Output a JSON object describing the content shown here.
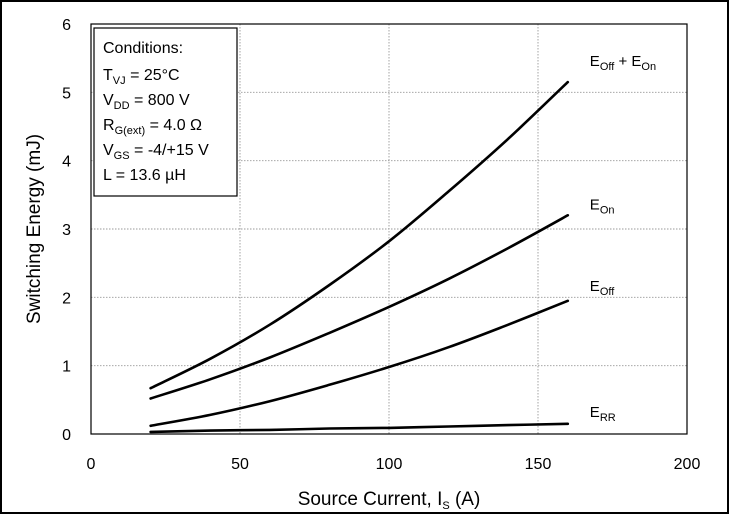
{
  "chart_data": {
    "type": "line",
    "xlabel": "Source Current, I",
    "xlabel_sub": "S",
    "xlabel_suffix": " (A)",
    "ylabel": "Switching Energy (mJ)",
    "xlim": [
      0,
      200
    ],
    "ylim": [
      0,
      6
    ],
    "xticks": [
      "0",
      "50",
      "100",
      "150",
      "200"
    ],
    "yticks": [
      "0",
      "1",
      "2",
      "3",
      "4",
      "5",
      "6"
    ],
    "grid": true,
    "series": [
      {
        "name": "E_Off + E_On",
        "label_main": "E",
        "label_sub": "Off",
        "label_mid": " + E",
        "label_sub2": "On",
        "x": [
          20,
          40,
          60,
          80,
          100,
          120,
          140,
          160
        ],
        "y": [
          0.67,
          1.1,
          1.6,
          2.18,
          2.82,
          3.55,
          4.32,
          5.15
        ]
      },
      {
        "name": "E_On",
        "label_main": "E",
        "label_sub": "On",
        "x": [
          20,
          40,
          60,
          80,
          100,
          120,
          140,
          160
        ],
        "y": [
          0.52,
          0.8,
          1.12,
          1.48,
          1.86,
          2.27,
          2.72,
          3.2
        ]
      },
      {
        "name": "E_Off",
        "label_main": "E",
        "label_sub": "Off",
        "x": [
          20,
          40,
          60,
          80,
          100,
          120,
          140,
          160
        ],
        "y": [
          0.12,
          0.28,
          0.48,
          0.72,
          0.98,
          1.27,
          1.6,
          1.95
        ]
      },
      {
        "name": "E_RR",
        "label_main": "E",
        "label_sub": "RR",
        "x": [
          20,
          40,
          60,
          80,
          100,
          120,
          140,
          160
        ],
        "y": [
          0.03,
          0.05,
          0.06,
          0.08,
          0.09,
          0.11,
          0.13,
          0.15
        ]
      }
    ],
    "conditions": {
      "title": "Conditions:",
      "lines": [
        {
          "main": "T",
          "sub": "VJ",
          "rest": " = 25°C"
        },
        {
          "main": "V",
          "sub": "DD",
          "rest": " = 800 V"
        },
        {
          "main": "R",
          "sub": "G(ext)",
          "rest": " = 4.0 Ω"
        },
        {
          "main": "V",
          "sub": "GS",
          "rest": " = -4/+15 V"
        },
        {
          "main": "L = 13.6 µH",
          "sub": "",
          "rest": ""
        }
      ]
    }
  }
}
